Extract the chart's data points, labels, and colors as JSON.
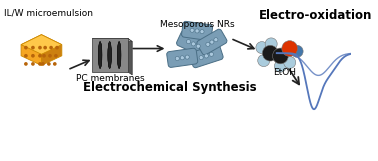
{
  "title_center": "Electrochemical Synthesis",
  "label_microemulsion": "IL/W microemulsion",
  "label_pc": "PC membranes",
  "label_mesoporous": "Mesoporous NRs",
  "label_etoh": "EtOH",
  "label_electro": "Electro-oxidation",
  "bg_color": "#ffffff",
  "cube_face_color": "#f5a623",
  "cube_dark_color": "#cc8010",
  "cube_light_color": "#ffc84a",
  "cube_hole_color": "#b8650a",
  "membrane_gray": "#888888",
  "membrane_dark": "#555555",
  "membrane_light": "#bbbbbb",
  "nrod_color": "#7a9db5",
  "nrod_dark": "#4a6e85",
  "nrod_light": "#aac8dd",
  "arrow_color": "#222222",
  "peak_color": "#5577bb",
  "mol_dark": "#1a1a1a",
  "mol_light": "#aaccdd",
  "mol_red": "#dd3300",
  "mol_blue": "#4477aa"
}
